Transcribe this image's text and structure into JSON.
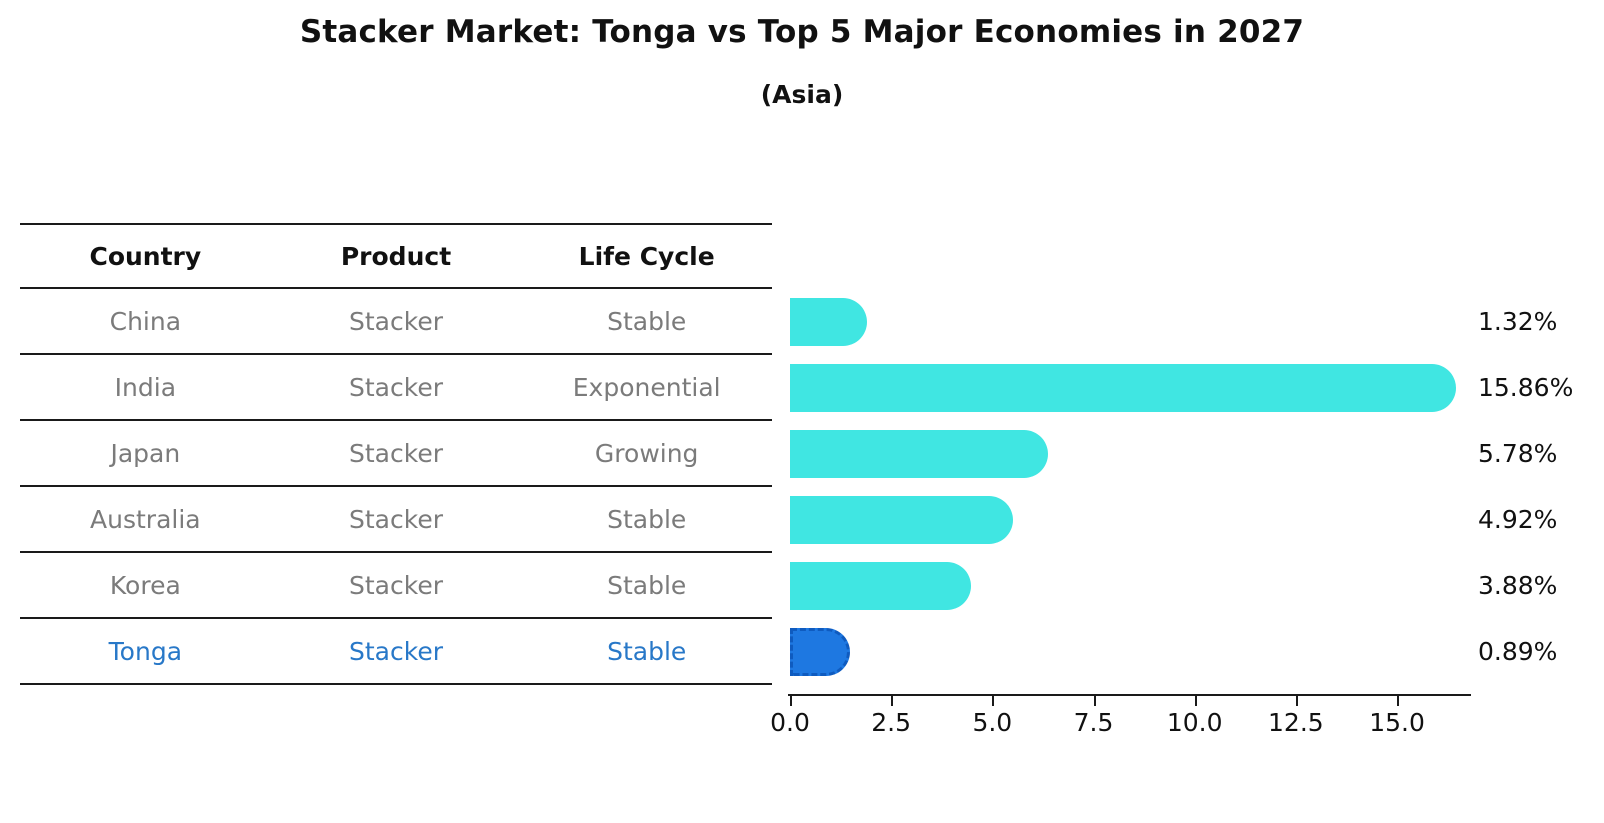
{
  "header": {
    "title": "Stacker Market: Tonga vs Top 5 Major Economies in 2027",
    "subtitle": "(Asia)"
  },
  "table": {
    "columns": [
      "Country",
      "Product",
      "Life Cycle"
    ],
    "rows": [
      {
        "country": "China",
        "product": "Stacker",
        "life_cycle": "Stable",
        "highlight": false
      },
      {
        "country": "India",
        "product": "Stacker",
        "life_cycle": "Exponential",
        "highlight": false
      },
      {
        "country": "Japan",
        "product": "Stacker",
        "life_cycle": "Growing",
        "highlight": false
      },
      {
        "country": "Australia",
        "product": "Stacker",
        "life_cycle": "Stable",
        "highlight": false
      },
      {
        "country": "Korea",
        "product": "Stacker",
        "life_cycle": "Stable",
        "highlight": false
      },
      {
        "country": "Tonga",
        "product": "Stacker",
        "life_cycle": "Stable",
        "highlight": true
      }
    ]
  },
  "chart_data": {
    "type": "bar",
    "orientation": "horizontal",
    "title": "Stacker Market: Tonga vs Top 5 Major Economies in 2027",
    "subtitle": "(Asia)",
    "categories": [
      "China",
      "India",
      "Japan",
      "Australia",
      "Korea",
      "Tonga"
    ],
    "values": [
      1.32,
      15.86,
      5.78,
      4.92,
      3.88,
      0.89
    ],
    "value_labels": [
      "1.32%",
      "15.86%",
      "5.78%",
      "4.92%",
      "3.88%",
      "0.89%"
    ],
    "x_tick_labels": [
      "0.0",
      "2.5",
      "5.0",
      "7.5",
      "10.0",
      "12.5",
      "15.0"
    ],
    "x_tick_values": [
      0.0,
      2.5,
      5.0,
      7.5,
      10.0,
      12.5,
      15.0
    ],
    "xlim": [
      0,
      16.8
    ],
    "xlabel": "",
    "ylabel": "",
    "grid": false,
    "legend": false,
    "bar_color": "#40E6E2",
    "highlight_color": "#1E78E1",
    "highlight_index": 5,
    "highlight_text_color": "#2878C8",
    "row_text_color": "#7B7B7B"
  }
}
